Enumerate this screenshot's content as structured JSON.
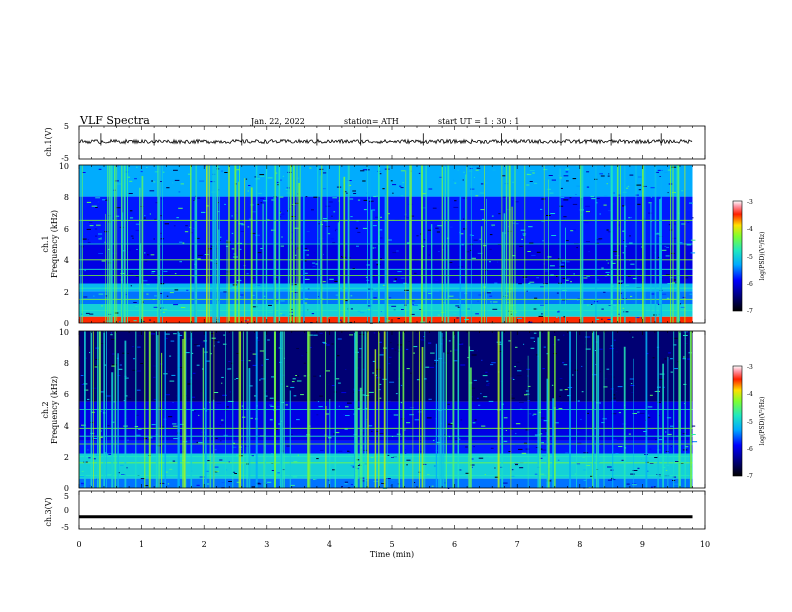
{
  "header": {
    "title": "VLF  Spectra",
    "date": "Jan. 22, 2022",
    "station": "station= ATH",
    "start": "start  UT  =   1 : 30 : 1"
  },
  "chart_data": [
    {
      "type": "line",
      "name": "ch1-waveform",
      "ylabel": "ch.1(V)",
      "ylim": [
        -5,
        5
      ],
      "y_ticks": [
        "5",
        "-5"
      ],
      "x_range_min": [
        0,
        9.8
      ],
      "mean_level_v": 0.3,
      "spikes_min": [
        0.35,
        1.2,
        2.6,
        3.8,
        4.5,
        5.5,
        6.75,
        7.7,
        8.5,
        9.3
      ]
    },
    {
      "type": "heatmap",
      "name": "ch1-spectrogram",
      "ylabel_channel": "ch.1",
      "ylabel": "Frequency  (kHz)",
      "ylim": [
        0,
        10
      ],
      "y_ticks": [
        "0",
        "2",
        "4",
        "6",
        "8",
        "10"
      ],
      "xlim": [
        0,
        10
      ],
      "data_extent_min": 9.8,
      "colorbar": {
        "label": "log(PSD)(V²/Hz)",
        "range": [
          -7,
          -3
        ],
        "ticks": [
          "-3",
          "-4",
          "-5",
          "-6",
          "-7"
        ]
      },
      "bands_khz": [
        {
          "band": [
            0,
            0.4
          ],
          "level": -3.5
        },
        {
          "band": [
            0.4,
            1.2
          ],
          "level": -5.0
        },
        {
          "band": [
            1.2,
            2.0
          ],
          "level": -5.5
        },
        {
          "band": [
            2.0,
            2.5
          ],
          "level": -5.2
        },
        {
          "band": [
            2.5,
            5.0
          ],
          "level": -6.0
        },
        {
          "band": [
            5.0,
            8.0
          ],
          "level": -5.8
        },
        {
          "band": [
            8.0,
            10.0
          ],
          "level": -5.3
        }
      ],
      "lines_khz": [
        0.8,
        1.5,
        2.2,
        3.0,
        3.4,
        4.0,
        5.0,
        6.5
      ]
    },
    {
      "type": "heatmap",
      "name": "ch2-spectrogram",
      "ylabel_channel": "ch.2",
      "ylabel": "Frequency  (kHz)",
      "ylim": [
        0,
        10
      ],
      "y_ticks": [
        "0",
        "2",
        "4",
        "6",
        "8",
        "10"
      ],
      "xlim": [
        0,
        10
      ],
      "data_extent_min": 9.8,
      "colorbar": {
        "label": "log(PSD)(V²/Hz)",
        "range": [
          -7,
          -3
        ],
        "ticks": [
          "-3",
          "-4",
          "-5",
          "-6",
          "-7"
        ]
      },
      "bands_khz": [
        {
          "band": [
            0,
            0.6
          ],
          "level": -5.5
        },
        {
          "band": [
            0.6,
            2.2
          ],
          "level": -5.0
        },
        {
          "band": [
            2.2,
            3.0
          ],
          "level": -5.8
        },
        {
          "band": [
            3.0,
            5.5
          ],
          "level": -6.0
        },
        {
          "band": [
            5.5,
            10.0
          ],
          "level": -6.5
        }
      ],
      "lines_khz": [
        0.8,
        1.6,
        2.0,
        2.8,
        3.3,
        3.8,
        5.0
      ]
    },
    {
      "type": "line",
      "name": "ch3-waveform",
      "ylabel": "ch.3(V)",
      "ylim": [
        -5,
        5
      ],
      "y_ticks": [
        "5",
        "0",
        "-5"
      ],
      "x_range_min": [
        0,
        9.8
      ],
      "mean_level_v": -1.8
    }
  ],
  "x_axis": {
    "label": "Time  (min)",
    "ticks": [
      "0",
      "1",
      "2",
      "3",
      "4",
      "5",
      "6",
      "7",
      "8",
      "9",
      "10"
    ]
  }
}
